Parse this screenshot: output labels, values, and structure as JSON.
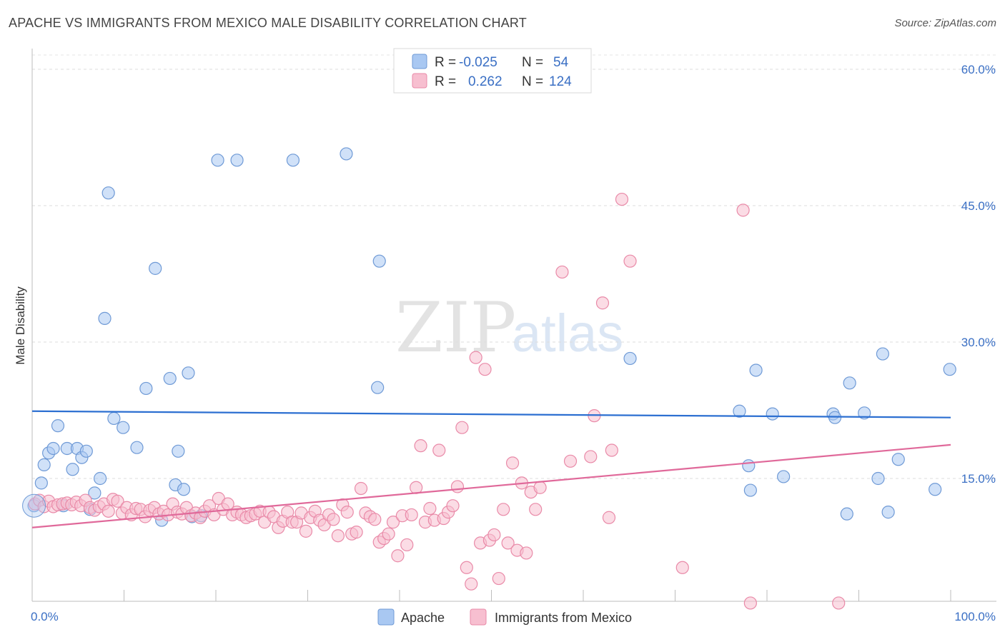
{
  "header": {
    "title": "APACHE VS IMMIGRANTS FROM MEXICO MALE DISABILITY CORRELATION CHART",
    "source": "Source: ZipAtlas.com"
  },
  "watermark": {
    "part1": "ZIP",
    "part2": "atlas"
  },
  "legend": {
    "r_label": "R =",
    "n_label": "N =",
    "rows": [
      {
        "r": "-0.025",
        "n": "54",
        "color": "#a9c8f2",
        "stroke": "#6f9ad6"
      },
      {
        "r": "0.262",
        "n": "124",
        "color": "#f7bfd0",
        "stroke": "#e98aa8"
      }
    ]
  },
  "bottom_legend": [
    {
      "label": "Apache",
      "color": "#a9c8f2",
      "stroke": "#6f9ad6"
    },
    {
      "label": "Immigrants from Mexico",
      "color": "#f7bfd0",
      "stroke": "#e98aa8"
    }
  ],
  "chart_data": {
    "type": "scatter",
    "title": "APACHE VS IMMIGRANTS FROM MEXICO MALE DISABILITY CORRELATION CHART",
    "xlabel": "",
    "ylabel": "Male Disability",
    "xlim": [
      0,
      100
    ],
    "ylim": [
      0,
      60
    ],
    "x_tick_labels": [
      "0.0%",
      "100.0%"
    ],
    "y_ticks": [
      15,
      30,
      45,
      60
    ],
    "y_tick_labels": [
      "15.0%",
      "30.0%",
      "45.0%",
      "60.0%"
    ],
    "grid": "horizontal dashed",
    "legend_position": "top-center",
    "series": [
      {
        "name": "Apache",
        "color": "#a9c8f2",
        "stroke": "#6f9ad6",
        "line_color": "#2c6fd1",
        "trend": [
          [
            0,
            22.4
          ],
          [
            100,
            21.7
          ]
        ],
        "points": [
          [
            0.2,
            12.0
          ],
          [
            1.0,
            14.5
          ],
          [
            1.3,
            16.5
          ],
          [
            1.8,
            17.8
          ],
          [
            2.3,
            18.3
          ],
          [
            2.8,
            20.8
          ],
          [
            3.4,
            12.0
          ],
          [
            3.8,
            18.3
          ],
          [
            4.4,
            16.0
          ],
          [
            4.9,
            18.3
          ],
          [
            5.4,
            17.3
          ],
          [
            5.9,
            18.0
          ],
          [
            6.3,
            11.6
          ],
          [
            6.8,
            13.4
          ],
          [
            7.4,
            15.0
          ],
          [
            7.9,
            32.6
          ],
          [
            8.3,
            46.4
          ],
          [
            8.9,
            21.6
          ],
          [
            9.9,
            20.6
          ],
          [
            11.4,
            18.4
          ],
          [
            12.4,
            24.9
          ],
          [
            13.4,
            38.1
          ],
          [
            14.1,
            10.4
          ],
          [
            15.0,
            26.0
          ],
          [
            15.6,
            14.3
          ],
          [
            15.9,
            18.0
          ],
          [
            16.5,
            13.8
          ],
          [
            17.0,
            26.6
          ],
          [
            17.4,
            10.8
          ],
          [
            18.4,
            10.9
          ],
          [
            20.2,
            50.0
          ],
          [
            22.3,
            50.0
          ],
          [
            28.4,
            50.0
          ],
          [
            34.2,
            50.7
          ],
          [
            37.6,
            25.0
          ],
          [
            37.8,
            38.9
          ],
          [
            65.1,
            28.2
          ],
          [
            77.0,
            22.4
          ],
          [
            78.8,
            26.9
          ],
          [
            78.0,
            16.4
          ],
          [
            78.2,
            13.7
          ],
          [
            80.6,
            22.1
          ],
          [
            81.8,
            15.2
          ],
          [
            87.2,
            22.1
          ],
          [
            87.4,
            21.7
          ],
          [
            88.7,
            11.1
          ],
          [
            89.0,
            25.5
          ],
          [
            90.6,
            22.2
          ],
          [
            92.1,
            15.0
          ],
          [
            92.6,
            28.7
          ],
          [
            93.2,
            11.3
          ],
          [
            94.3,
            17.1
          ],
          [
            98.3,
            13.8
          ],
          [
            99.9,
            27.0
          ]
        ]
      },
      {
        "name": "Immigrants from Mexico",
        "color": "#f7bfd0",
        "stroke": "#e98aa8",
        "line_color": "#e0699a",
        "trend": [
          [
            0,
            9.6
          ],
          [
            100,
            18.7
          ]
        ],
        "points": [
          [
            0.3,
            12.2
          ],
          [
            0.8,
            12.6
          ],
          [
            1.3,
            11.9
          ],
          [
            1.8,
            12.5
          ],
          [
            2.3,
            11.9
          ],
          [
            2.8,
            12.1
          ],
          [
            3.3,
            12.2
          ],
          [
            3.8,
            12.3
          ],
          [
            4.3,
            12.1
          ],
          [
            4.8,
            12.4
          ],
          [
            5.3,
            12.0
          ],
          [
            5.8,
            12.6
          ],
          [
            6.3,
            11.8
          ],
          [
            6.8,
            11.5
          ],
          [
            7.3,
            11.9
          ],
          [
            7.8,
            12.2
          ],
          [
            8.3,
            11.4
          ],
          [
            8.8,
            12.7
          ],
          [
            9.3,
            12.5
          ],
          [
            9.8,
            11.2
          ],
          [
            10.3,
            11.8
          ],
          [
            10.8,
            11.0
          ],
          [
            11.3,
            11.7
          ],
          [
            11.8,
            11.6
          ],
          [
            12.3,
            10.8
          ],
          [
            12.8,
            11.5
          ],
          [
            13.3,
            11.8
          ],
          [
            13.8,
            11.1
          ],
          [
            14.3,
            11.4
          ],
          [
            14.8,
            11.0
          ],
          [
            15.3,
            12.2
          ],
          [
            15.8,
            11.3
          ],
          [
            16.3,
            11.1
          ],
          [
            16.8,
            11.8
          ],
          [
            17.3,
            10.9
          ],
          [
            17.8,
            11.2
          ],
          [
            18.3,
            10.7
          ],
          [
            18.8,
            11.4
          ],
          [
            19.3,
            12.0
          ],
          [
            19.8,
            11.0
          ],
          [
            20.3,
            12.8
          ],
          [
            20.8,
            11.6
          ],
          [
            21.3,
            12.2
          ],
          [
            21.8,
            11.0
          ],
          [
            22.3,
            11.3
          ],
          [
            22.8,
            11.0
          ],
          [
            23.3,
            10.7
          ],
          [
            23.8,
            10.9
          ],
          [
            24.3,
            11.1
          ],
          [
            24.8,
            11.4
          ],
          [
            25.3,
            10.2
          ],
          [
            25.8,
            11.3
          ],
          [
            26.3,
            10.8
          ],
          [
            26.8,
            9.6
          ],
          [
            27.3,
            10.3
          ],
          [
            27.8,
            11.3
          ],
          [
            28.3,
            10.2
          ],
          [
            28.8,
            10.2
          ],
          [
            29.3,
            11.2
          ],
          [
            29.8,
            9.2
          ],
          [
            30.3,
            10.7
          ],
          [
            30.8,
            11.4
          ],
          [
            31.3,
            10.4
          ],
          [
            31.8,
            9.9
          ],
          [
            32.3,
            11.0
          ],
          [
            32.8,
            10.5
          ],
          [
            33.3,
            8.7
          ],
          [
            33.8,
            12.1
          ],
          [
            34.3,
            11.3
          ],
          [
            34.8,
            8.9
          ],
          [
            35.3,
            9.1
          ],
          [
            35.8,
            13.9
          ],
          [
            36.3,
            11.2
          ],
          [
            36.8,
            10.8
          ],
          [
            37.3,
            10.5
          ],
          [
            37.8,
            8.0
          ],
          [
            38.3,
            8.4
          ],
          [
            38.8,
            8.9
          ],
          [
            39.3,
            10.2
          ],
          [
            39.8,
            6.5
          ],
          [
            40.3,
            10.9
          ],
          [
            40.8,
            7.7
          ],
          [
            41.3,
            11.0
          ],
          [
            41.8,
            14.0
          ],
          [
            42.3,
            18.6
          ],
          [
            42.8,
            10.2
          ],
          [
            43.3,
            11.7
          ],
          [
            43.8,
            10.4
          ],
          [
            44.3,
            18.1
          ],
          [
            44.8,
            10.6
          ],
          [
            45.3,
            11.3
          ],
          [
            45.8,
            12.0
          ],
          [
            46.3,
            14.1
          ],
          [
            46.8,
            20.6
          ],
          [
            47.3,
            5.2
          ],
          [
            47.8,
            3.4
          ],
          [
            48.3,
            28.3
          ],
          [
            48.8,
            7.9
          ],
          [
            49.3,
            27.0
          ],
          [
            49.8,
            8.2
          ],
          [
            50.3,
            8.8
          ],
          [
            50.8,
            4.0
          ],
          [
            51.3,
            11.6
          ],
          [
            51.8,
            7.9
          ],
          [
            52.3,
            16.7
          ],
          [
            52.8,
            7.1
          ],
          [
            53.3,
            14.5
          ],
          [
            53.8,
            6.8
          ],
          [
            54.3,
            13.5
          ],
          [
            54.8,
            11.6
          ],
          [
            55.3,
            14.0
          ],
          [
            57.7,
            37.7
          ],
          [
            58.6,
            16.9
          ],
          [
            60.8,
            17.4
          ],
          [
            61.2,
            21.9
          ],
          [
            62.1,
            34.3
          ],
          [
            62.8,
            10.7
          ],
          [
            63.1,
            18.1
          ],
          [
            64.2,
            45.7
          ],
          [
            65.1,
            38.9
          ],
          [
            70.8,
            5.2
          ],
          [
            77.4,
            44.5
          ],
          [
            78.2,
            1.3
          ],
          [
            87.8,
            1.3
          ]
        ]
      }
    ]
  }
}
